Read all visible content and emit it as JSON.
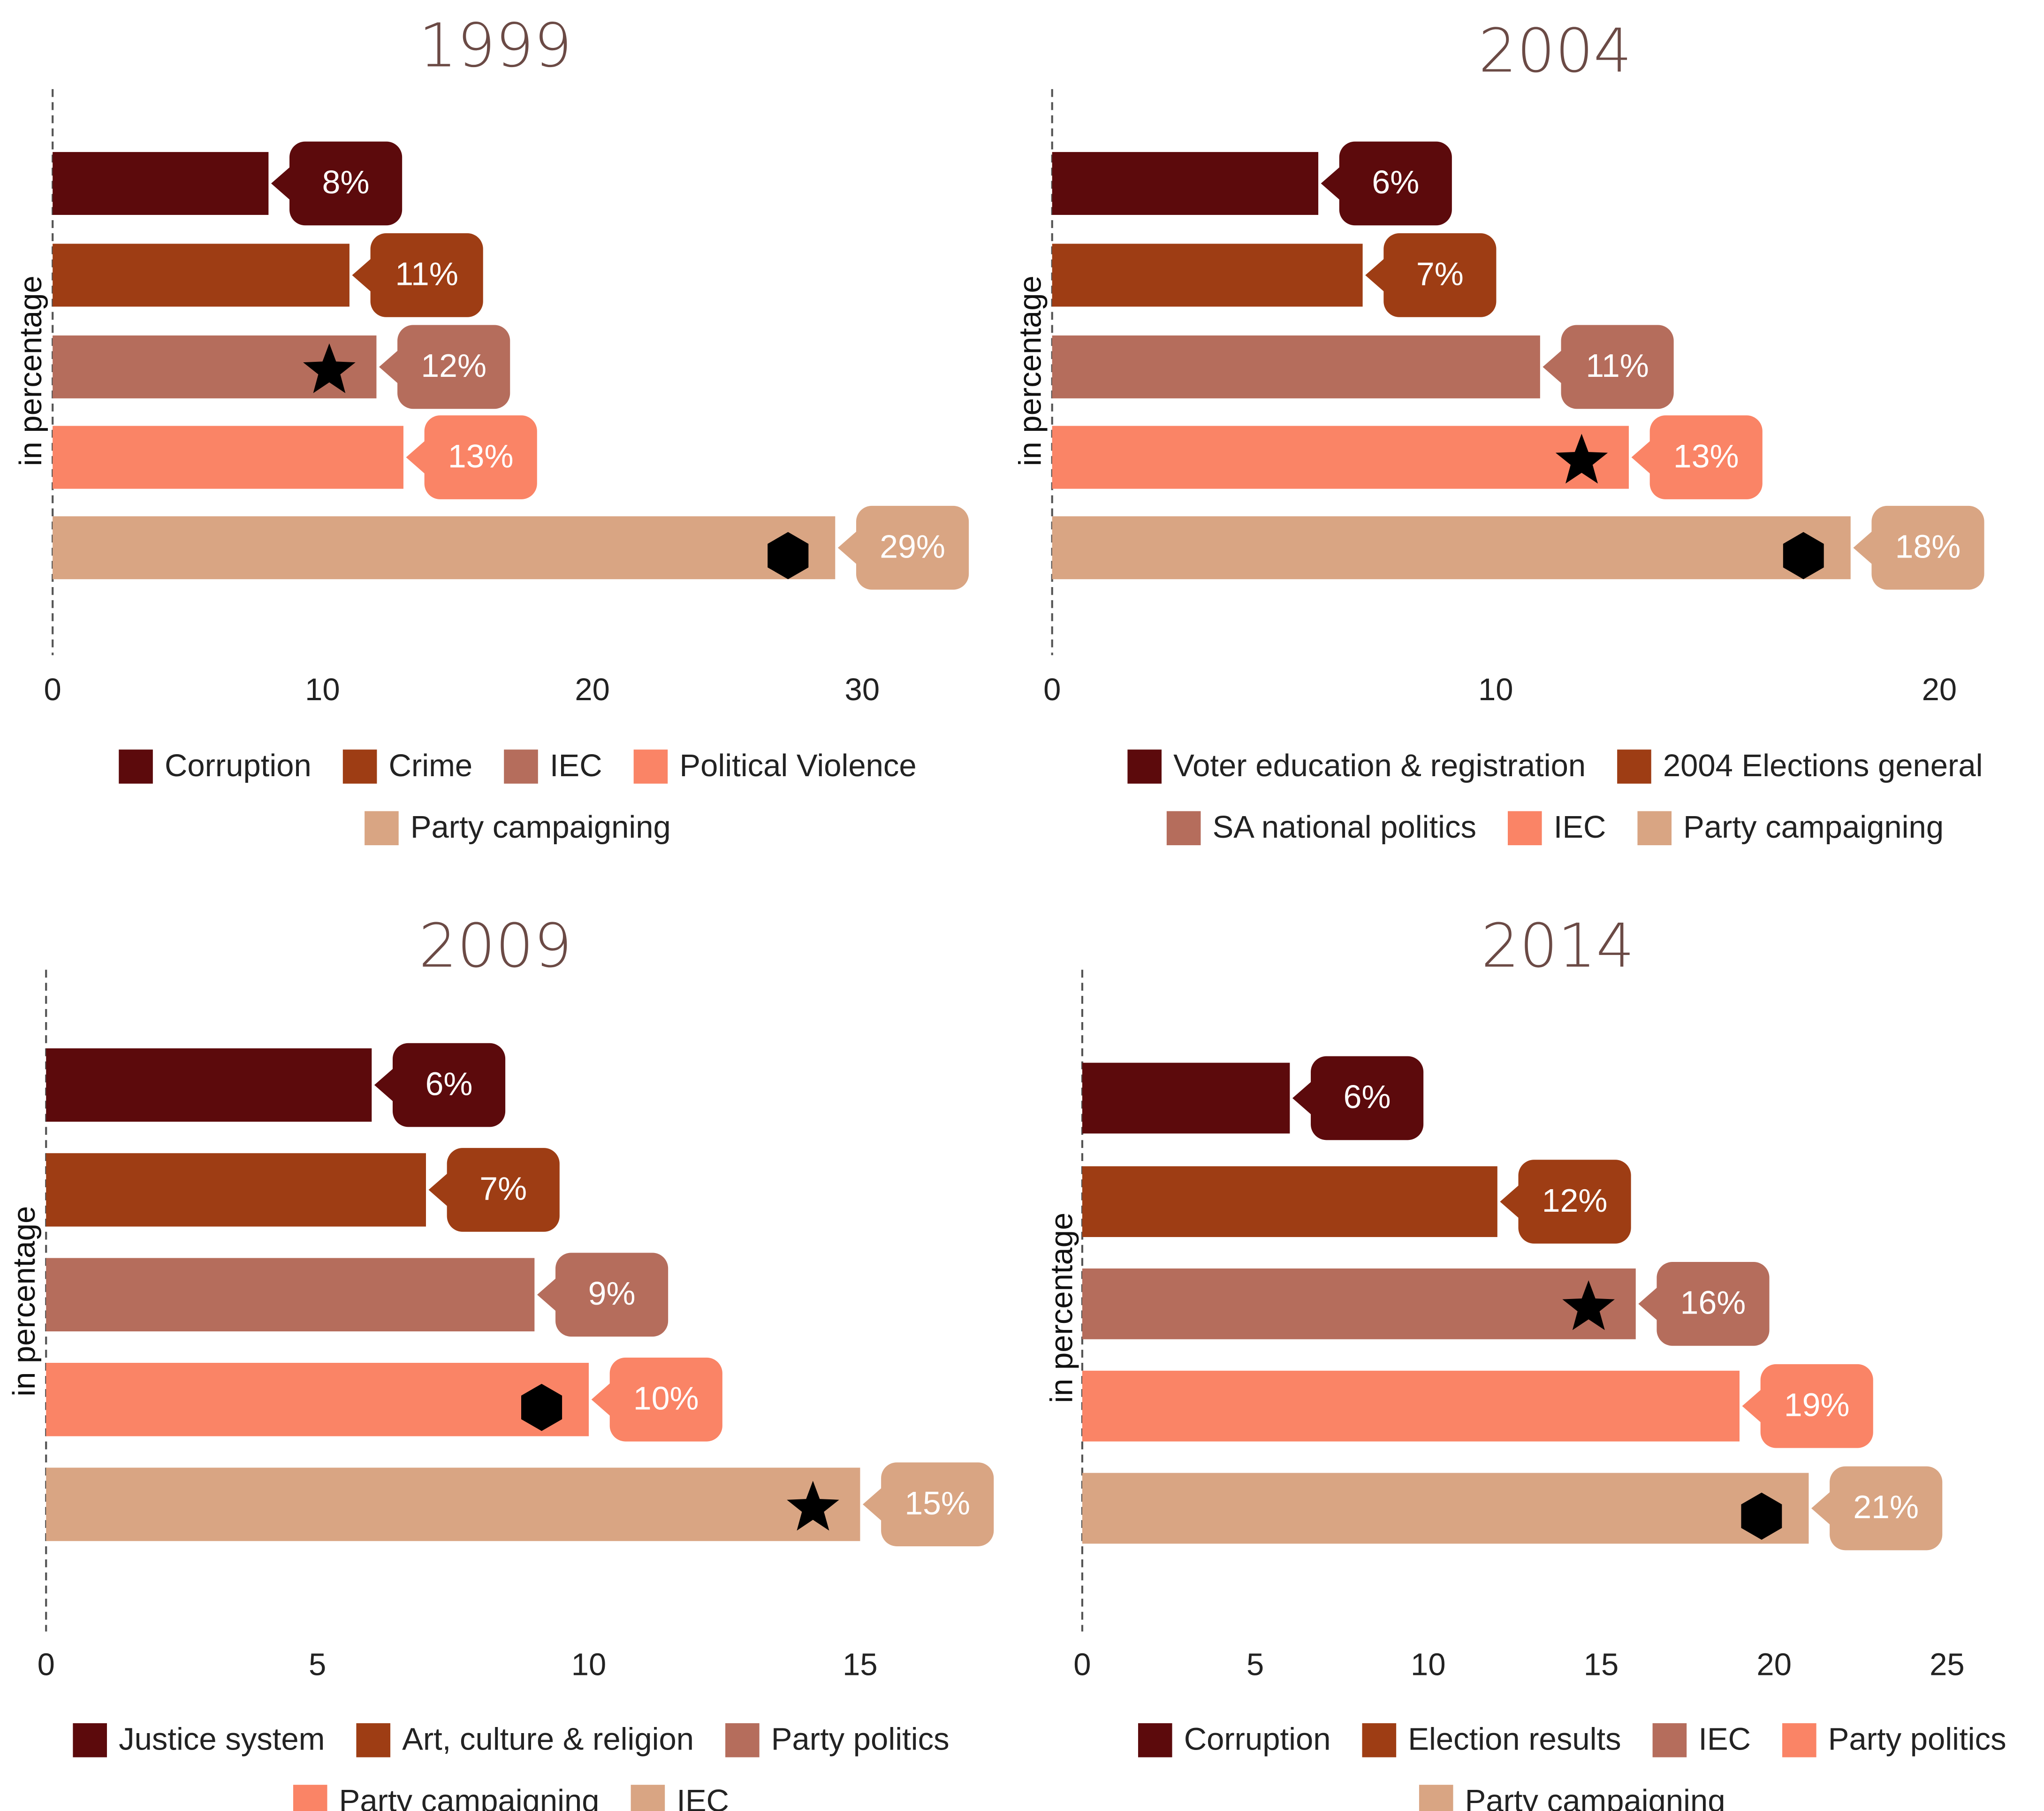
{
  "chart_data": [
    {
      "type": "bar",
      "orientation": "horizontal",
      "title": "1999",
      "y_label": "in percentage",
      "categories": [
        "Corruption",
        "Crime",
        "IEC",
        "Political Violence",
        "Party campaigning"
      ],
      "values": [
        8,
        11,
        12,
        13,
        29
      ],
      "value_labels": [
        "8%",
        "11%",
        "12%",
        "13%",
        "29%"
      ],
      "colors": [
        "#5c0a0c",
        "#9e3d14",
        "#b56d5c",
        "#fa8466",
        "#d9a583"
      ],
      "symbols": [
        null,
        null,
        "star",
        null,
        "hexagon"
      ],
      "xlim": [
        0,
        35
      ],
      "xticks": [
        0,
        10,
        20,
        30
      ]
    },
    {
      "type": "bar",
      "orientation": "horizontal",
      "title": "2004",
      "y_label": "in percentage",
      "categories": [
        "Voter education & registration",
        "2004 Elections general",
        "SA national politics",
        "IEC",
        "Party campaigning"
      ],
      "values": [
        6,
        7,
        11,
        13,
        18
      ],
      "value_labels": [
        "6%",
        "7%",
        "11%",
        "13%",
        "18%"
      ],
      "colors": [
        "#5c0a0c",
        "#9e3d14",
        "#b56d5c",
        "#fa8466",
        "#d9a583"
      ],
      "symbols": [
        null,
        null,
        null,
        "star",
        "hexagon"
      ],
      "xlim": [
        0,
        22
      ],
      "xticks": [
        0,
        10,
        20
      ]
    },
    {
      "type": "bar",
      "orientation": "horizontal",
      "title": "2009",
      "y_label": "in percentage",
      "categories": [
        "Justice system",
        "Art, culture & religion",
        "Party politics",
        "Party campaigning",
        "IEC"
      ],
      "values": [
        6,
        7,
        9,
        10,
        15
      ],
      "value_labels": [
        "6%",
        "7%",
        "9%",
        "10%",
        "15%"
      ],
      "colors": [
        "#5c0a0c",
        "#9e3d14",
        "#b56d5c",
        "#fa8466",
        "#d9a583"
      ],
      "symbols": [
        null,
        null,
        null,
        "hexagon",
        "star"
      ],
      "xlim": [
        0,
        17.5
      ],
      "xticks": [
        0,
        5,
        10,
        15
      ]
    },
    {
      "type": "bar",
      "orientation": "horizontal",
      "title": "2014",
      "y_label": "in percentage",
      "categories": [
        "Corruption",
        "Election results",
        "IEC",
        "Party politics",
        "Party campaigning"
      ],
      "values": [
        6,
        12,
        16,
        19,
        21
      ],
      "value_labels": [
        "6%",
        "12%",
        "16%",
        "19%",
        "21%"
      ],
      "colors": [
        "#5c0a0c",
        "#9e3d14",
        "#b56d5c",
        "#fa8466",
        "#d9a583"
      ],
      "symbols": [
        null,
        null,
        "star",
        null,
        "hexagon"
      ],
      "xlim": [
        0,
        27
      ],
      "xticks": [
        0,
        5,
        10,
        15,
        20,
        25
      ]
    }
  ]
}
